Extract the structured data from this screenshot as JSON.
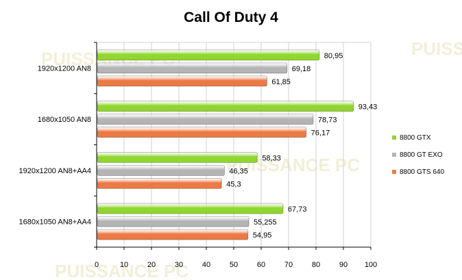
{
  "chart_data": {
    "type": "bar",
    "orientation": "horizontal",
    "title": "Call Of Duty 4",
    "categories": [
      "1920x1200 AN8",
      "1680x1050 AN8",
      "1920x1200 AN8+AA4",
      "1680x1050 AN8+AA4"
    ],
    "series": [
      {
        "name": "8800 GTX",
        "color": "#8fd62e",
        "values": [
          80.95,
          93.43,
          58.33,
          67.73
        ],
        "labels": [
          "80,95",
          "93,43",
          "58,33",
          "67,73"
        ]
      },
      {
        "name": "8800 GT EXO",
        "color": "#b4b4b4",
        "values": [
          69.18,
          78.73,
          46.35,
          55.255
        ],
        "labels": [
          "69,18",
          "78,73",
          "46,35",
          "55,255"
        ]
      },
      {
        "name": "8800 GTS 640",
        "color": "#ec7a45",
        "values": [
          61.85,
          76.17,
          45.3,
          54.95
        ],
        "labels": [
          "61,85",
          "76,17",
          "45,3",
          "54,95"
        ]
      }
    ],
    "xlim": [
      0,
      100
    ],
    "xticks": [
      "0",
      "10",
      "20",
      "30",
      "40",
      "50",
      "60",
      "70",
      "80",
      "90",
      "100"
    ],
    "grid": true,
    "legend_position": "right"
  },
  "watermark": {
    "text": "PUISSANCE PC"
  }
}
